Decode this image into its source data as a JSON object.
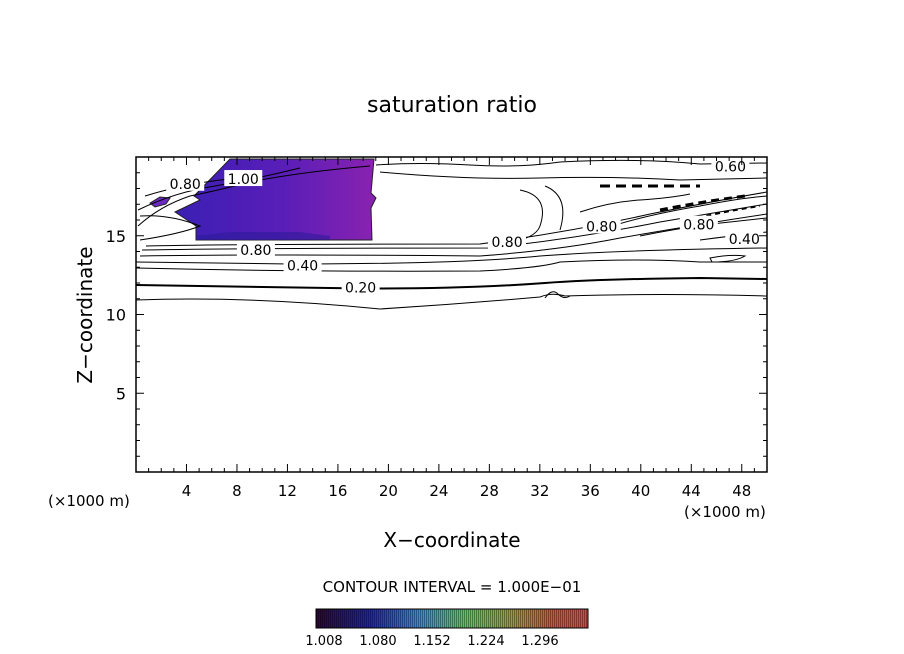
{
  "chart_data": {
    "type": "contour",
    "title": "saturation ratio",
    "xlabel": "X−coordinate",
    "ylabel": "Z−coordinate",
    "x_unit_left": "(×1000 m)",
    "x_unit_right": "(×1000 m)",
    "xlim": [
      0,
      50
    ],
    "ylim": [
      0,
      20
    ],
    "x_ticks": [
      4,
      8,
      12,
      16,
      20,
      24,
      28,
      32,
      36,
      40,
      44,
      48
    ],
    "y_ticks": [
      5,
      10,
      15
    ],
    "contour_interval_text": "CONTOUR INTERVAL = 1.000E−01",
    "contour_labels": [
      {
        "text": "0.80",
        "x": 3.9,
        "z": 18.3
      },
      {
        "text": "1.00",
        "x": 8.5,
        "z": 18.6
      },
      {
        "text": "0.60",
        "x": 47.1,
        "z": 19.4
      },
      {
        "text": "0.80",
        "x": 9.5,
        "z": 14.1
      },
      {
        "text": "0.40",
        "x": 13.2,
        "z": 13.1
      },
      {
        "text": "0.20",
        "x": 17.8,
        "z": 11.7
      },
      {
        "text": "0.80",
        "x": 29.4,
        "z": 14.6
      },
      {
        "text": "0.80",
        "x": 36.9,
        "z": 15.6
      },
      {
        "text": "0.80",
        "x": 44.6,
        "z": 15.7
      },
      {
        "text": "0.40",
        "x": 48.2,
        "z": 14.8
      }
    ],
    "filled_region": {
      "x_range": [
        1,
        19
      ],
      "z_range": [
        14.9,
        20
      ],
      "min_value": 1.008,
      "max_value": 1.3
    },
    "colorbar": {
      "ticks": [
        "1.008",
        "1.080",
        "1.152",
        "1.224",
        "1.296"
      ],
      "colors": [
        "#1a0a2e",
        "#2a1eb0",
        "#3fb6d8",
        "#5fc460",
        "#c87a3a",
        "#d04848"
      ]
    }
  }
}
